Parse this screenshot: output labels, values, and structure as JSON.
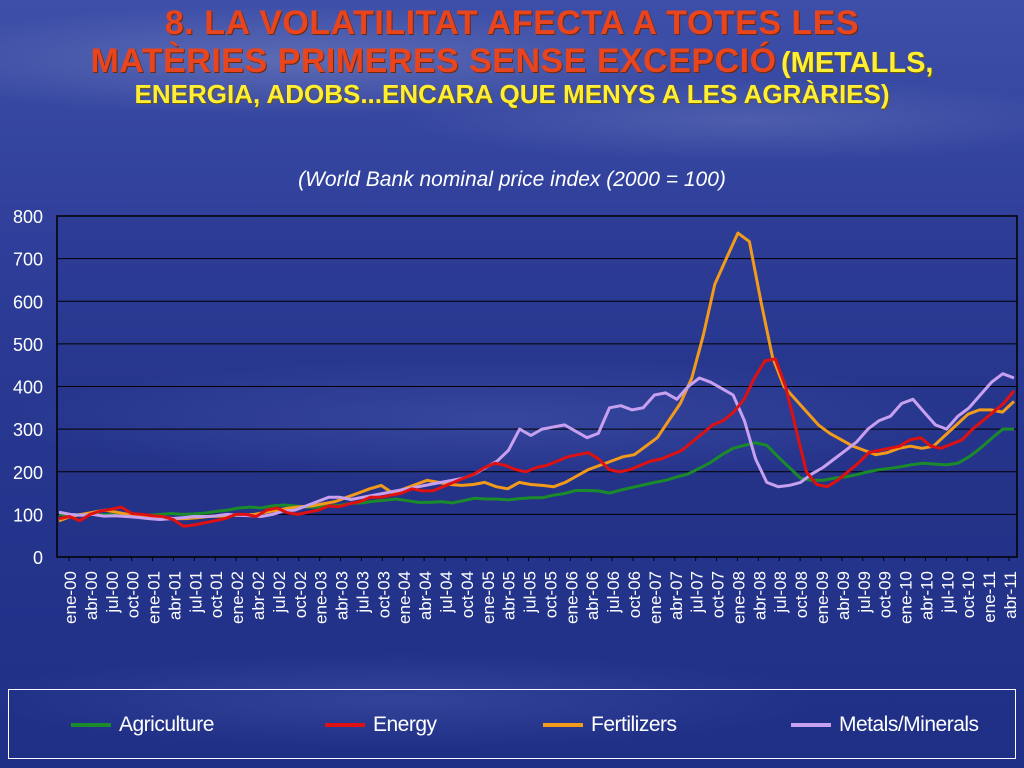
{
  "title": {
    "line1": "8. LA VOLATILITAT AFECTA A TOTES LES",
    "line2a": "MATÈRIES PRIMERES SENSE EXCEPCIÓ",
    "line2b": "(METALLS,",
    "line3": "ENERGIA, ADOBS...ENCARA QUE MENYS A LES AGRÀRIES)"
  },
  "colors": {
    "Agriculture": "#1a8a2a",
    "Energy": "#dd1111",
    "Fertilizers": "#f29a1a",
    "Metals/Minerals": "#c8a0f0"
  },
  "chart_data": {
    "type": "line",
    "title": "(World Bank nominal price index (2000 = 100)",
    "ylim": [
      0,
      800
    ],
    "yticks": [
      0,
      100,
      200,
      300,
      400,
      500,
      600,
      700,
      800
    ],
    "grid": "horizontal",
    "legend_position": "bottom",
    "x_start": "ene-00",
    "x_end": "abr-11",
    "x_tick_labels": [
      "ene-00",
      "abr-00",
      "jul-00",
      "oct-00",
      "ene-01",
      "abr-01",
      "jul-01",
      "oct-01",
      "ene-02",
      "abr-02",
      "jul-02",
      "oct-02",
      "ene-03",
      "abr-03",
      "jul-03",
      "oct-03",
      "ene-04",
      "abr-04",
      "jul-04",
      "oct-04",
      "ene-05",
      "abr-05",
      "jul-05",
      "oct-05",
      "ene-06",
      "abr-06",
      "jul-06",
      "oct-06",
      "ene-07",
      "abr-07",
      "jul-07",
      "oct-07",
      "ene-08",
      "abr-08",
      "jul-08",
      "oct-08",
      "ene-09",
      "abr-09",
      "jul-09",
      "oct-09",
      "ene-10",
      "abr-10",
      "jul-10",
      "oct-10",
      "ene-11",
      "abr-11"
    ],
    "series": [
      {
        "name": "Agriculture",
        "values": [
          100,
          98,
          100,
          100,
          99,
          100,
          98,
          97,
          98,
          100,
          102,
          100,
          101,
          103,
          107,
          110,
          115,
          117,
          115,
          120,
          122,
          120,
          117,
          117,
          120,
          121,
          126,
          127,
          131,
          133,
          136,
          132,
          128,
          128,
          130,
          127,
          132,
          138,
          136,
          136,
          134,
          137,
          139,
          139,
          145,
          149,
          156,
          156,
          155,
          150,
          157,
          163,
          169,
          175,
          180,
          188,
          195,
          208,
          222,
          240,
          255,
          262,
          268,
          262,
          235,
          210,
          185,
          180,
          180,
          185,
          188,
          193,
          200,
          205,
          208,
          212,
          217,
          220,
          218,
          216,
          220,
          235,
          255,
          278,
          300,
          300
        ]
      },
      {
        "name": "Energy",
        "values": [
          90,
          95,
          85,
          100,
          108,
          112,
          117,
          102,
          100,
          97,
          95,
          88,
          72,
          75,
          80,
          85,
          90,
          100,
          100,
          95,
          110,
          115,
          104,
          100,
          105,
          110,
          120,
          118,
          125,
          130,
          140,
          140,
          145,
          150,
          160,
          155,
          155,
          165,
          175,
          185,
          195,
          210,
          220,
          215,
          205,
          200,
          210,
          215,
          225,
          235,
          240,
          245,
          230,
          205,
          200,
          205,
          215,
          225,
          230,
          240,
          250,
          270,
          290,
          310,
          320,
          340,
          370,
          420,
          460,
          465,
          400,
          300,
          200,
          170,
          165,
          180,
          200,
          220,
          245,
          250,
          255,
          260,
          275,
          280,
          260,
          255,
          265,
          275,
          300,
          320,
          340,
          360,
          390
        ]
      },
      {
        "name": "Fertilizers",
        "values": [
          85,
          95,
          100,
          105,
          110,
          105,
          100,
          98,
          95,
          92,
          90,
          90,
          92,
          95,
          96,
          98,
          98,
          100,
          105,
          110,
          115,
          118,
          120,
          125,
          130,
          140,
          150,
          160,
          168,
          150,
          160,
          170,
          180,
          175,
          170,
          168,
          170,
          175,
          165,
          160,
          175,
          170,
          168,
          165,
          175,
          190,
          205,
          215,
          225,
          235,
          240,
          260,
          280,
          320,
          360,
          420,
          520,
          640,
          700,
          760,
          740,
          600,
          470,
          400,
          370,
          340,
          310,
          290,
          275,
          260,
          250,
          240,
          245,
          255,
          260,
          255,
          260,
          285,
          310,
          335,
          345,
          345,
          340,
          365
        ]
      },
      {
        "name": "Metals/Minerals",
        "values": [
          105,
          100,
          98,
          100,
          96,
          97,
          95,
          93,
          90,
          88,
          90,
          92,
          95,
          95,
          97,
          100,
          98,
          97,
          95,
          100,
          108,
          110,
          120,
          130,
          140,
          140,
          135,
          140,
          145,
          150,
          155,
          160,
          165,
          170,
          175,
          180,
          185,
          195,
          210,
          225,
          250,
          300,
          285,
          300,
          305,
          310,
          295,
          280,
          290,
          350,
          355,
          345,
          350,
          380,
          385,
          370,
          400,
          420,
          410,
          395,
          380,
          320,
          230,
          175,
          165,
          168,
          175,
          195,
          210,
          230,
          250,
          270,
          300,
          320,
          330,
          360,
          370,
          340,
          310,
          300,
          330,
          350,
          380,
          410,
          430,
          420
        ]
      }
    ]
  }
}
